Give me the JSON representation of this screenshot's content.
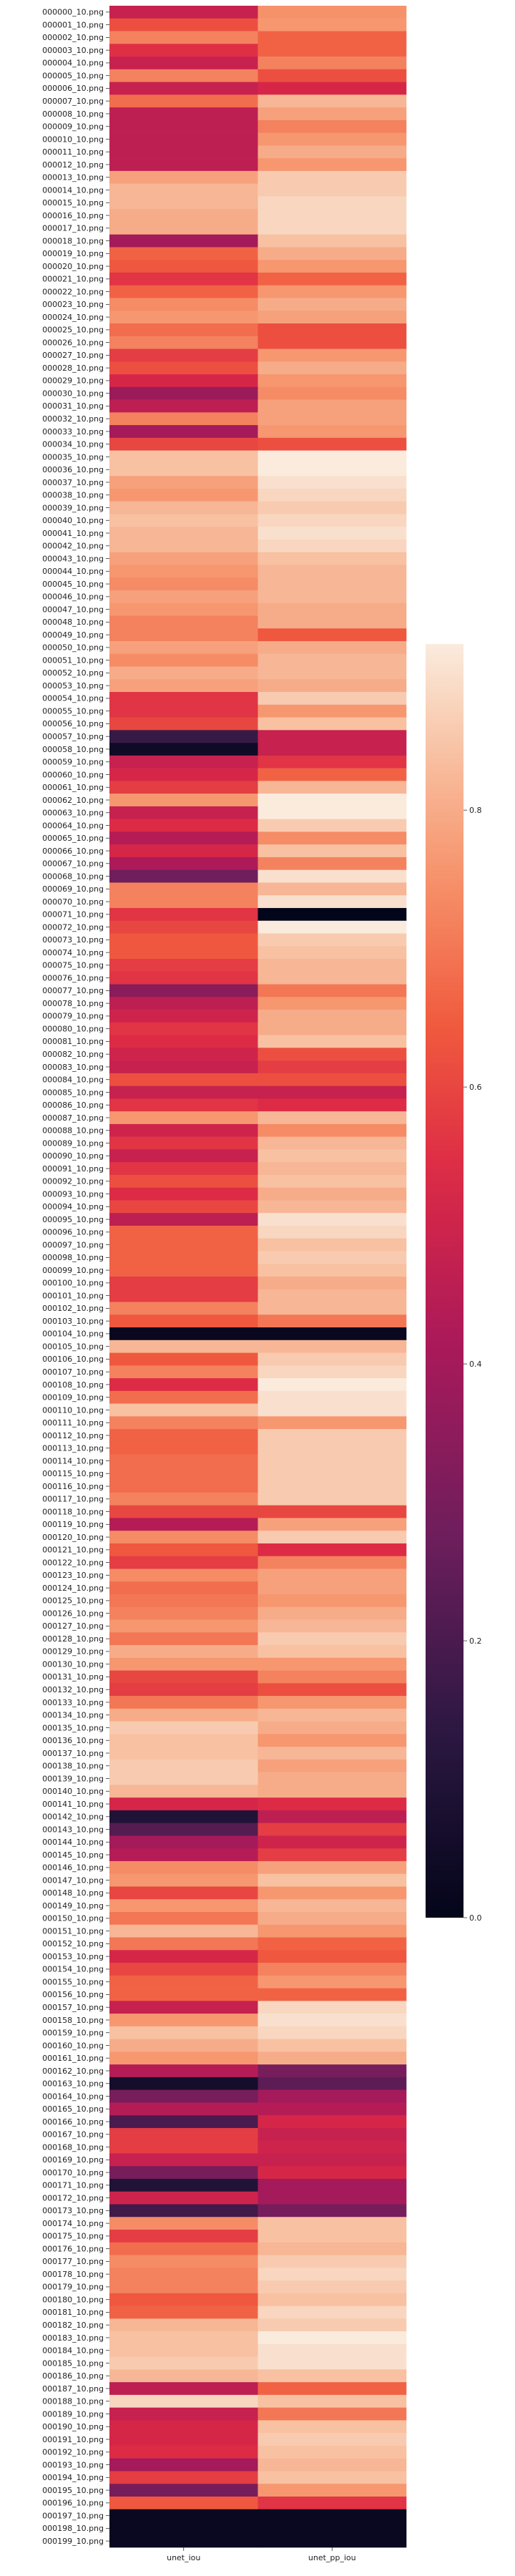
{
  "chart_data": {
    "type": "heatmap",
    "title": "",
    "xlabel": "",
    "ylabel": "",
    "columns": [
      "unet_iou",
      "unet_pp_iou"
    ],
    "rows": [
      "000000_10.png",
      "000001_10.png",
      "000002_10.png",
      "000003_10.png",
      "000004_10.png",
      "000005_10.png",
      "000006_10.png",
      "000007_10.png",
      "000008_10.png",
      "000009_10.png",
      "000010_10.png",
      "000011_10.png",
      "000012_10.png",
      "000013_10.png",
      "000014_10.png",
      "000015_10.png",
      "000016_10.png",
      "000017_10.png",
      "000018_10.png",
      "000019_10.png",
      "000020_10.png",
      "000021_10.png",
      "000022_10.png",
      "000023_10.png",
      "000024_10.png",
      "000025_10.png",
      "000026_10.png",
      "000027_10.png",
      "000028_10.png",
      "000029_10.png",
      "000030_10.png",
      "000031_10.png",
      "000032_10.png",
      "000033_10.png",
      "000034_10.png",
      "000035_10.png",
      "000036_10.png",
      "000037_10.png",
      "000038_10.png",
      "000039_10.png",
      "000040_10.png",
      "000041_10.png",
      "000042_10.png",
      "000043_10.png",
      "000044_10.png",
      "000045_10.png",
      "000046_10.png",
      "000047_10.png",
      "000048_10.png",
      "000049_10.png",
      "000050_10.png",
      "000051_10.png",
      "000052_10.png",
      "000053_10.png",
      "000054_10.png",
      "000055_10.png",
      "000056_10.png",
      "000057_10.png",
      "000058_10.png",
      "000059_10.png",
      "000060_10.png",
      "000061_10.png",
      "000062_10.png",
      "000063_10.png",
      "000064_10.png",
      "000065_10.png",
      "000066_10.png",
      "000067_10.png",
      "000068_10.png",
      "000069_10.png",
      "000070_10.png",
      "000071_10.png",
      "000072_10.png",
      "000073_10.png",
      "000074_10.png",
      "000075_10.png",
      "000076_10.png",
      "000077_10.png",
      "000078_10.png",
      "000079_10.png",
      "000080_10.png",
      "000081_10.png",
      "000082_10.png",
      "000083_10.png",
      "000084_10.png",
      "000085_10.png",
      "000086_10.png",
      "000087_10.png",
      "000088_10.png",
      "000089_10.png",
      "000090_10.png",
      "000091_10.png",
      "000092_10.png",
      "000093_10.png",
      "000094_10.png",
      "000095_10.png",
      "000096_10.png",
      "000097_10.png",
      "000098_10.png",
      "000099_10.png",
      "000100_10.png",
      "000101_10.png",
      "000102_10.png",
      "000103_10.png",
      "000104_10.png",
      "000105_10.png",
      "000106_10.png",
      "000107_10.png",
      "000108_10.png",
      "000109_10.png",
      "000110_10.png",
      "000111_10.png",
      "000112_10.png",
      "000113_10.png",
      "000114_10.png",
      "000115_10.png",
      "000116_10.png",
      "000117_10.png",
      "000118_10.png",
      "000119_10.png",
      "000120_10.png",
      "000121_10.png",
      "000122_10.png",
      "000123_10.png",
      "000124_10.png",
      "000125_10.png",
      "000126_10.png",
      "000127_10.png",
      "000128_10.png",
      "000129_10.png",
      "000130_10.png",
      "000131_10.png",
      "000132_10.png",
      "000133_10.png",
      "000134_10.png",
      "000135_10.png",
      "000136_10.png",
      "000137_10.png",
      "000138_10.png",
      "000139_10.png",
      "000140_10.png",
      "000141_10.png",
      "000142_10.png",
      "000143_10.png",
      "000144_10.png",
      "000145_10.png",
      "000146_10.png",
      "000147_10.png",
      "000148_10.png",
      "000149_10.png",
      "000150_10.png",
      "000151_10.png",
      "000152_10.png",
      "000153_10.png",
      "000154_10.png",
      "000155_10.png",
      "000156_10.png",
      "000157_10.png",
      "000158_10.png",
      "000159_10.png",
      "000160_10.png",
      "000161_10.png",
      "000162_10.png",
      "000163_10.png",
      "000164_10.png",
      "000165_10.png",
      "000166_10.png",
      "000167_10.png",
      "000168_10.png",
      "000169_10.png",
      "000170_10.png",
      "000171_10.png",
      "000172_10.png",
      "000173_10.png",
      "000174_10.png",
      "000175_10.png",
      "000176_10.png",
      "000177_10.png",
      "000178_10.png",
      "000179_10.png",
      "000180_10.png",
      "000181_10.png",
      "000182_10.png",
      "000183_10.png",
      "000184_10.png",
      "000185_10.png",
      "000186_10.png",
      "000187_10.png",
      "000188_10.png",
      "000189_10.png",
      "000190_10.png",
      "000191_10.png",
      "000192_10.png",
      "000193_10.png",
      "000194_10.png",
      "000195_10.png",
      "000196_10.png",
      "000197_10.png",
      "000198_10.png",
      "000199_10.png"
    ],
    "values": [
      [
        0.48,
        0.75
      ],
      [
        0.62,
        0.76
      ],
      [
        0.72,
        0.66
      ],
      [
        0.55,
        0.66
      ],
      [
        0.48,
        0.72
      ],
      [
        0.72,
        0.62
      ],
      [
        0.48,
        0.52
      ],
      [
        0.68,
        0.82
      ],
      [
        0.46,
        0.78
      ],
      [
        0.46,
        0.72
      ],
      [
        0.46,
        0.76
      ],
      [
        0.46,
        0.8
      ],
      [
        0.46,
        0.76
      ],
      [
        0.78,
        0.86
      ],
      [
        0.82,
        0.86
      ],
      [
        0.82,
        0.88
      ],
      [
        0.8,
        0.88
      ],
      [
        0.8,
        0.88
      ],
      [
        0.4,
        0.84
      ],
      [
        0.66,
        0.8
      ],
      [
        0.64,
        0.76
      ],
      [
        0.56,
        0.66
      ],
      [
        0.66,
        0.76
      ],
      [
        0.74,
        0.8
      ],
      [
        0.76,
        0.78
      ],
      [
        0.68,
        0.62
      ],
      [
        0.72,
        0.62
      ],
      [
        0.58,
        0.76
      ],
      [
        0.62,
        0.8
      ],
      [
        0.52,
        0.76
      ],
      [
        0.38,
        0.74
      ],
      [
        0.46,
        0.78
      ],
      [
        0.72,
        0.78
      ],
      [
        0.4,
        0.76
      ],
      [
        0.6,
        0.62
      ],
      [
        0.84,
        0.92
      ],
      [
        0.84,
        0.92
      ],
      [
        0.78,
        0.9
      ],
      [
        0.76,
        0.88
      ],
      [
        0.82,
        0.86
      ],
      [
        0.84,
        0.88
      ],
      [
        0.82,
        0.9
      ],
      [
        0.82,
        0.88
      ],
      [
        0.78,
        0.84
      ],
      [
        0.76,
        0.82
      ],
      [
        0.74,
        0.82
      ],
      [
        0.78,
        0.82
      ],
      [
        0.76,
        0.8
      ],
      [
        0.72,
        0.8
      ],
      [
        0.72,
        0.64
      ],
      [
        0.78,
        0.8
      ],
      [
        0.74,
        0.82
      ],
      [
        0.8,
        0.82
      ],
      [
        0.78,
        0.8
      ],
      [
        0.56,
        0.86
      ],
      [
        0.56,
        0.76
      ],
      [
        0.6,
        0.84
      ],
      [
        0.16,
        0.48
      ],
      [
        0.04,
        0.48
      ],
      [
        0.48,
        0.56
      ],
      [
        0.52,
        0.66
      ],
      [
        0.58,
        0.82
      ],
      [
        0.76,
        0.92
      ],
      [
        0.48,
        0.94
      ],
      [
        0.54,
        0.86
      ],
      [
        0.44,
        0.74
      ],
      [
        0.52,
        0.84
      ],
      [
        0.42,
        0.72
      ],
      [
        0.28,
        0.9
      ],
      [
        0.72,
        0.82
      ],
      [
        0.72,
        0.9
      ],
      [
        0.56,
        0.0
      ],
      [
        0.6,
        0.92
      ],
      [
        0.64,
        0.86
      ],
      [
        0.64,
        0.84
      ],
      [
        0.58,
        0.82
      ],
      [
        0.56,
        0.82
      ],
      [
        0.34,
        0.7
      ],
      [
        0.46,
        0.76
      ],
      [
        0.5,
        0.8
      ],
      [
        0.56,
        0.8
      ],
      [
        0.54,
        0.84
      ],
      [
        0.5,
        0.62
      ],
      [
        0.48,
        0.58
      ],
      [
        0.62,
        0.62
      ],
      [
        0.48,
        0.48
      ],
      [
        0.56,
        0.54
      ],
      [
        0.76,
        0.82
      ],
      [
        0.5,
        0.74
      ],
      [
        0.56,
        0.82
      ],
      [
        0.48,
        0.84
      ],
      [
        0.56,
        0.82
      ],
      [
        0.62,
        0.84
      ],
      [
        0.54,
        0.8
      ],
      [
        0.6,
        0.82
      ],
      [
        0.46,
        0.9
      ],
      [
        0.66,
        0.88
      ],
      [
        0.66,
        0.84
      ],
      [
        0.66,
        0.86
      ],
      [
        0.66,
        0.84
      ],
      [
        0.58,
        0.8
      ],
      [
        0.58,
        0.82
      ],
      [
        0.72,
        0.82
      ],
      [
        0.64,
        0.7
      ],
      [
        0.02,
        0.02
      ],
      [
        0.82,
        0.82
      ],
      [
        0.64,
        0.86
      ],
      [
        0.72,
        0.88
      ],
      [
        0.54,
        0.92
      ],
      [
        0.68,
        0.9
      ],
      [
        0.84,
        0.9
      ],
      [
        0.72,
        0.76
      ],
      [
        0.66,
        0.86
      ],
      [
        0.66,
        0.86
      ],
      [
        0.68,
        0.86
      ],
      [
        0.68,
        0.86
      ],
      [
        0.68,
        0.86
      ],
      [
        0.72,
        0.86
      ],
      [
        0.6,
        0.6
      ],
      [
        0.44,
        0.78
      ],
      [
        0.74,
        0.86
      ],
      [
        0.64,
        0.54
      ],
      [
        0.58,
        0.72
      ],
      [
        0.74,
        0.78
      ],
      [
        0.68,
        0.78
      ],
      [
        0.7,
        0.76
      ],
      [
        0.72,
        0.8
      ],
      [
        0.76,
        0.82
      ],
      [
        0.7,
        0.86
      ],
      [
        0.8,
        0.84
      ],
      [
        0.76,
        0.76
      ],
      [
        0.6,
        0.72
      ],
      [
        0.58,
        0.62
      ],
      [
        0.7,
        0.76
      ],
      [
        0.8,
        0.82
      ],
      [
        0.86,
        0.8
      ],
      [
        0.84,
        0.76
      ],
      [
        0.84,
        0.82
      ],
      [
        0.86,
        0.78
      ],
      [
        0.86,
        0.8
      ],
      [
        0.82,
        0.8
      ],
      [
        0.52,
        0.54
      ],
      [
        0.1,
        0.46
      ],
      [
        0.22,
        0.58
      ],
      [
        0.4,
        0.5
      ],
      [
        0.44,
        0.58
      ],
      [
        0.74,
        0.78
      ],
      [
        0.76,
        0.84
      ],
      [
        0.6,
        0.76
      ],
      [
        0.76,
        0.82
      ],
      [
        0.7,
        0.8
      ],
      [
        0.82,
        0.76
      ],
      [
        0.7,
        0.66
      ],
      [
        0.52,
        0.64
      ],
      [
        0.6,
        0.72
      ],
      [
        0.66,
        0.76
      ],
      [
        0.66,
        0.66
      ],
      [
        0.48,
        0.88
      ],
      [
        0.76,
        0.9
      ],
      [
        0.84,
        0.88
      ],
      [
        0.8,
        0.84
      ],
      [
        0.76,
        0.8
      ],
      [
        0.44,
        0.3
      ],
      [
        0.06,
        0.24
      ],
      [
        0.3,
        0.4
      ],
      [
        0.44,
        0.44
      ],
      [
        0.2,
        0.52
      ],
      [
        0.58,
        0.48
      ],
      [
        0.58,
        0.5
      ],
      [
        0.48,
        0.48
      ],
      [
        0.3,
        0.52
      ],
      [
        0.1,
        0.4
      ],
      [
        0.5,
        0.4
      ],
      [
        0.18,
        0.3
      ],
      [
        0.74,
        0.84
      ],
      [
        0.58,
        0.84
      ],
      [
        0.68,
        0.82
      ],
      [
        0.74,
        0.86
      ],
      [
        0.72,
        0.88
      ],
      [
        0.72,
        0.86
      ],
      [
        0.64,
        0.84
      ],
      [
        0.66,
        0.88
      ],
      [
        0.82,
        0.86
      ],
      [
        0.84,
        0.92
      ],
      [
        0.84,
        0.9
      ],
      [
        0.86,
        0.9
      ],
      [
        0.82,
        0.84
      ],
      [
        0.46,
        0.66
      ],
      [
        0.88,
        0.84
      ],
      [
        0.48,
        0.7
      ],
      [
        0.52,
        0.84
      ],
      [
        0.52,
        0.86
      ],
      [
        0.54,
        0.84
      ],
      [
        0.4,
        0.82
      ],
      [
        0.58,
        0.84
      ],
      [
        0.3,
        0.76
      ],
      [
        0.64,
        0.56
      ],
      [
        0.02,
        0.02
      ],
      [
        0.02,
        0.02
      ],
      [
        0.02,
        0.02
      ]
    ],
    "vmin": 0.0,
    "vmax": 0.92,
    "colormap": "rocket",
    "colorbar": {
      "ticks": [
        "0.0",
        "0.2",
        "0.4",
        "0.6",
        "0.8"
      ],
      "tick_values": [
        0.0,
        0.2,
        0.4,
        0.6,
        0.8
      ]
    },
    "legend": "colorbar right",
    "grid": false
  }
}
